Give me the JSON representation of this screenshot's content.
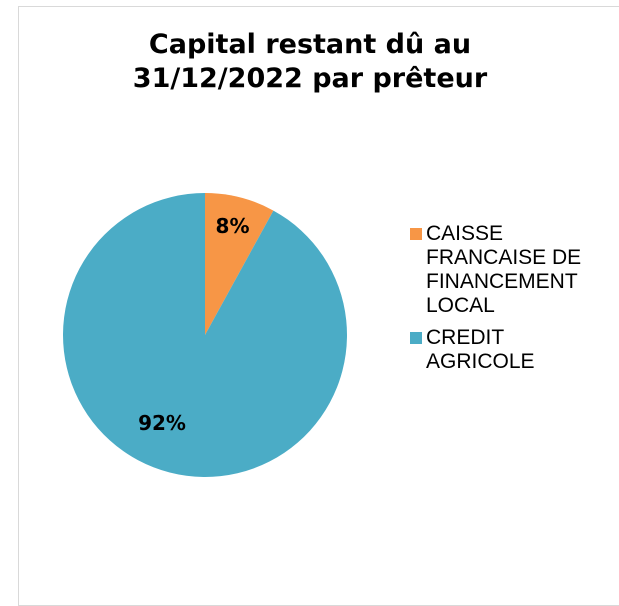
{
  "chart_data": {
    "type": "pie",
    "title": "Capital restant dû au 31/12/2022 par prêteur",
    "categories": [
      "CAISSE FRANCAISE DE FINANCEMENT LOCAL",
      "CREDIT AGRICOLE"
    ],
    "values": [
      8,
      92
    ],
    "value_labels": [
      "8%",
      "92%"
    ],
    "colors": [
      "#f79646",
      "#4bacc6"
    ],
    "legend": "right"
  }
}
